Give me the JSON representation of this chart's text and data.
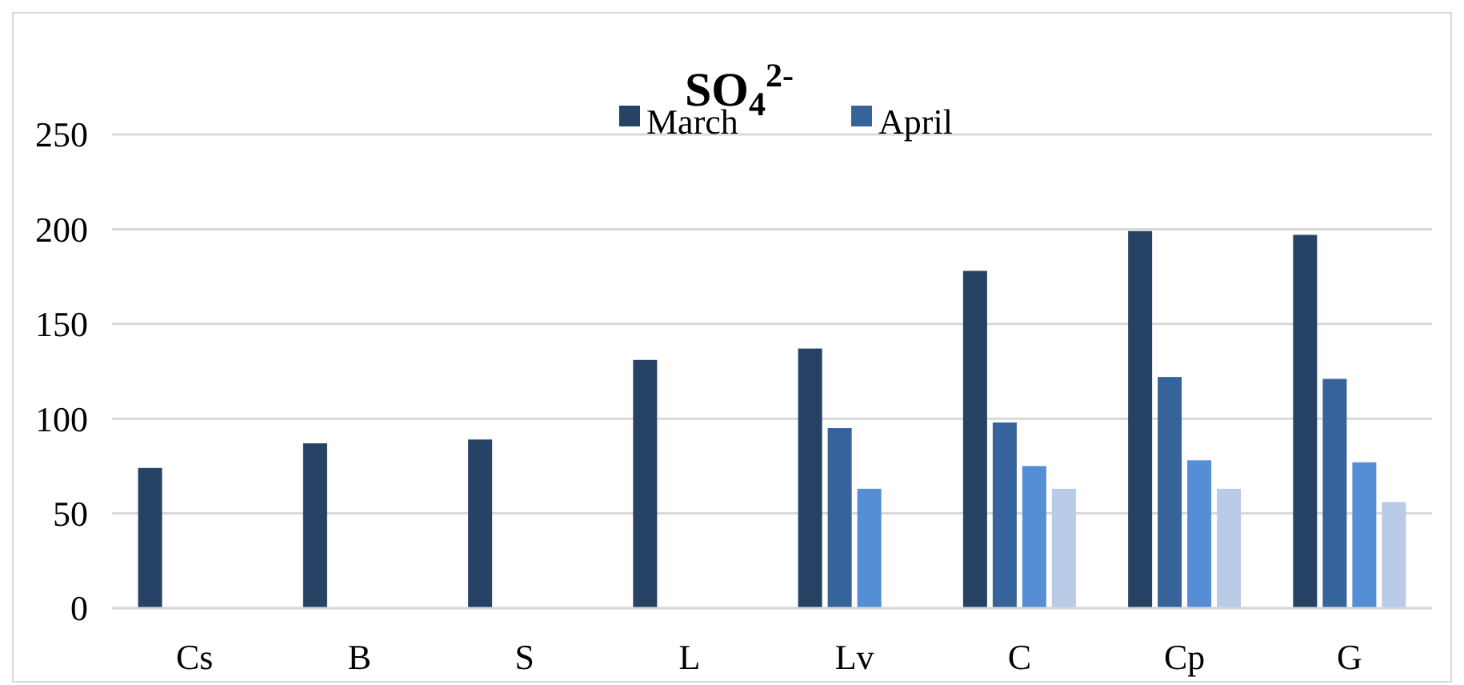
{
  "chart_data": {
    "type": "bar",
    "title": "SO$_{4}$$^{2-}$",
    "categories": [
      "Cs",
      "B",
      "S",
      "L",
      "Lv",
      "C",
      "Cp",
      "G"
    ],
    "series": [
      {
        "name": "March",
        "color": "#264366",
        "values": [
          74,
          87,
          89,
          131,
          137,
          178,
          199,
          197
        ]
      },
      {
        "name": "April",
        "color": "#366399",
        "values": [
          null,
          null,
          null,
          null,
          95,
          98,
          122,
          121
        ]
      },
      {
        "color": "#558ed5",
        "values": [
          null,
          null,
          null,
          null,
          63,
          75,
          78,
          77
        ]
      },
      {
        "color": "#b9cbe6",
        "values": [
          null,
          null,
          null,
          null,
          null,
          63,
          63,
          56
        ]
      }
    ],
    "ylim": [
      0,
      250
    ],
    "yticks": [
      0,
      50,
      100,
      150,
      200,
      250
    ],
    "grid": "y",
    "legend": "top"
  }
}
